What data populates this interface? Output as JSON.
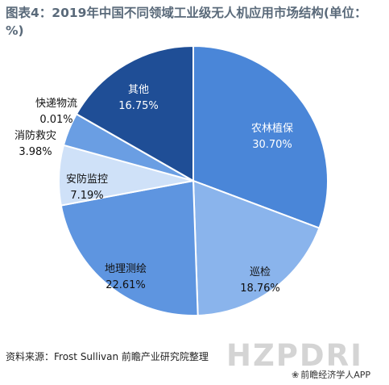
{
  "title": "图表4：2019年中国不同领域工业级无人机应用市场结构(单位：%)",
  "source": "资料来源：Frost Sullivan 前瞻产业研究院整理",
  "brand_logo": "HZPDRI",
  "credit": "前瞻经济学人APP",
  "colors": {
    "农林植保": "#4a86d8",
    "巡检": "#8ab4ec",
    "地理测绘": "#5e95e0",
    "安防监控": "#cfe1f8",
    "消防救灾": "#6a9ee3",
    "快递物流": "#3a76cc",
    "其他": "#1f4e96"
  },
  "chart_data": {
    "type": "pie",
    "title": "图表4：2019年中国不同领域工业级无人机应用市场结构(单位：%)",
    "unit": "%",
    "slices": [
      {
        "label": "农林植保",
        "value": 30.7,
        "value_label": "30.70%"
      },
      {
        "label": "巡检",
        "value": 18.76,
        "value_label": "18.76%"
      },
      {
        "label": "地理测绘",
        "value": 22.61,
        "value_label": "22.61%"
      },
      {
        "label": "安防监控",
        "value": 7.19,
        "value_label": "7.19%"
      },
      {
        "label": "消防救灾",
        "value": 3.98,
        "value_label": "3.98%"
      },
      {
        "label": "快递物流",
        "value": 0.01,
        "value_label": "0.01%"
      },
      {
        "label": "其他",
        "value": 16.75,
        "value_label": "16.75%"
      }
    ],
    "start": "12 o'clock",
    "direction": "clockwise"
  }
}
